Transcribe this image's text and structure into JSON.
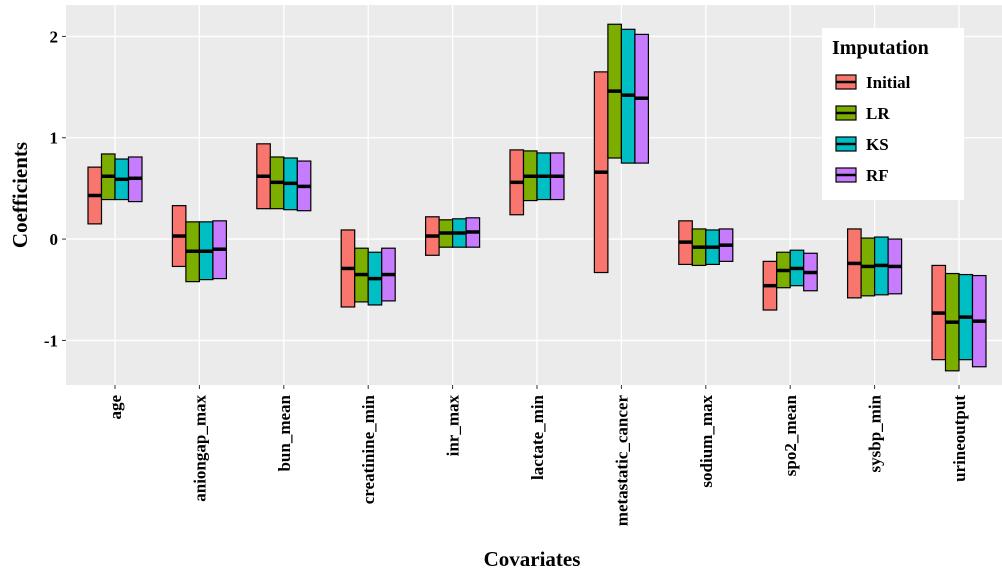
{
  "chart_data": {
    "type": "crossbar",
    "x_label": "Covariates",
    "y_label": "Coefficients",
    "legend_title": "Imputation",
    "legend_position": "top-right",
    "grid": true,
    "categories": [
      "age",
      "aniongap_max",
      "bun_mean",
      "creatinine_min",
      "inr_max",
      "lactate_min",
      "metastatic_cancer",
      "sodium_max",
      "spo2_mean",
      "sysbp_min",
      "urineoutput"
    ],
    "ylim": [
      -1.44,
      2.31
    ],
    "yticks": [
      -1,
      0,
      1,
      2
    ],
    "series": [
      {
        "name": "Initial",
        "color": "#F8766D",
        "values": [
          0.43,
          0.03,
          0.62,
          -0.29,
          0.03,
          0.56,
          0.66,
          -0.03,
          -0.46,
          -0.24,
          -0.73
        ],
        "lower": [
          0.15,
          -0.27,
          0.3,
          -0.67,
          -0.16,
          0.24,
          -0.33,
          -0.25,
          -0.7,
          -0.58,
          -1.19
        ],
        "upper": [
          0.71,
          0.33,
          0.94,
          0.09,
          0.22,
          0.88,
          1.65,
          0.18,
          -0.22,
          0.1,
          -0.26
        ]
      },
      {
        "name": "LR",
        "color": "#7CAE00",
        "values": [
          0.62,
          -0.12,
          0.56,
          -0.35,
          0.06,
          0.62,
          1.46,
          -0.08,
          -0.31,
          -0.27,
          -0.82
        ],
        "lower": [
          0.39,
          -0.42,
          0.3,
          -0.62,
          -0.08,
          0.38,
          0.8,
          -0.26,
          -0.48,
          -0.56,
          -1.3
        ],
        "upper": [
          0.84,
          0.17,
          0.81,
          -0.09,
          0.19,
          0.87,
          2.12,
          0.1,
          -0.13,
          0.01,
          -0.34
        ]
      },
      {
        "name": "KS",
        "color": "#00BFC4",
        "values": [
          0.59,
          -0.12,
          0.55,
          -0.39,
          0.06,
          0.62,
          1.42,
          -0.08,
          -0.29,
          -0.26,
          -0.77
        ],
        "lower": [
          0.39,
          -0.4,
          0.29,
          -0.65,
          -0.08,
          0.39,
          0.75,
          -0.25,
          -0.46,
          -0.55,
          -1.19
        ],
        "upper": [
          0.79,
          0.17,
          0.8,
          -0.13,
          0.2,
          0.85,
          2.07,
          0.09,
          -0.11,
          0.02,
          -0.35
        ]
      },
      {
        "name": "RF",
        "color": "#C77CFF",
        "values": [
          0.6,
          -0.1,
          0.52,
          -0.35,
          0.07,
          0.62,
          1.39,
          -0.06,
          -0.33,
          -0.27,
          -0.81
        ],
        "lower": [
          0.37,
          -0.39,
          0.28,
          -0.61,
          -0.08,
          0.39,
          0.75,
          -0.22,
          -0.51,
          -0.54,
          -1.26
        ],
        "upper": [
          0.81,
          0.18,
          0.77,
          -0.09,
          0.21,
          0.85,
          2.02,
          0.1,
          -0.14,
          0.0,
          -0.36
        ]
      }
    ]
  }
}
